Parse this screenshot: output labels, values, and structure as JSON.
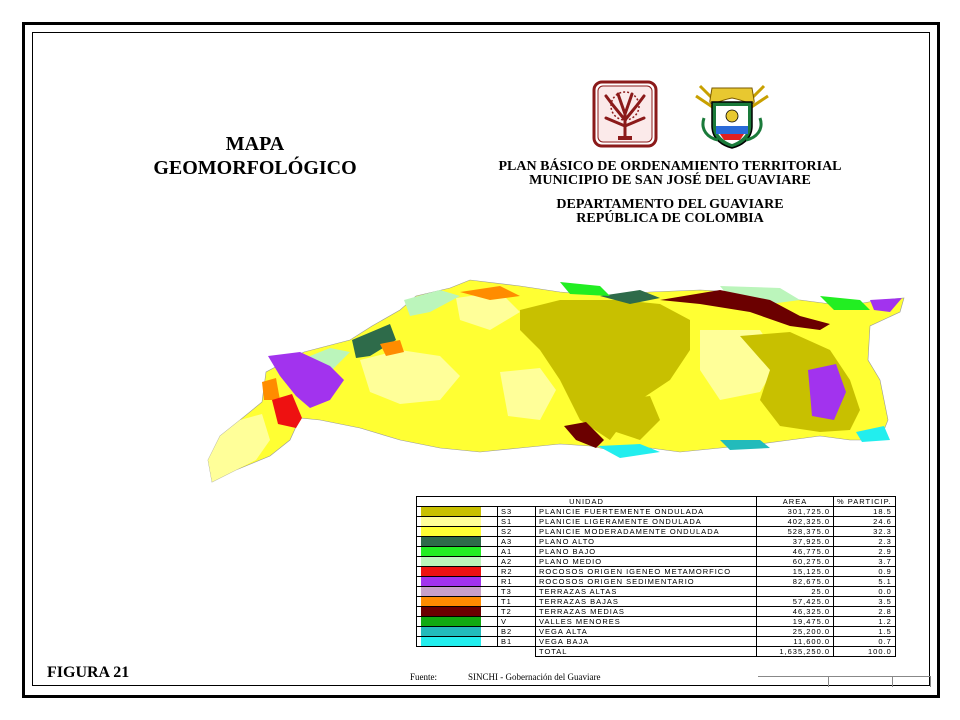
{
  "map_title": [
    "MAPA",
    "GEOMORFOLÓGICO"
  ],
  "plan_lines_1": [
    "PLAN BÁSICO DE ORDENAMIENTO TERRITORIAL",
    "MUNICIPIO DE SAN JOSÉ DEL GUAVIARE"
  ],
  "plan_lines_2": [
    "DEPARTAMENTO DEL GUAVIARE",
    "REPÚBLICA DE COLOMBIA"
  ],
  "legend": {
    "headers": {
      "unit": "UNIDAD",
      "area": "AREA",
      "pct": "% PARTICIP."
    },
    "rows": [
      {
        "code": "S3",
        "name": "PLANICIE FUERTEMENTE ONDULADA",
        "area": "301,725.0",
        "pct": "18.5",
        "color": "#c8c000"
      },
      {
        "code": "S1",
        "name": "PLANICIE LIGERAMENTE ONDULADA",
        "area": "402,325.0",
        "pct": "24.6",
        "color": "#ffff99"
      },
      {
        "code": "S2",
        "name": "PLANICIE MODERADAMENTE ONDULADA",
        "area": "528,375.0",
        "pct": "32.3",
        "color": "#ffff33"
      },
      {
        "code": "A3",
        "name": "PLANO ALTO",
        "area": "37,925.0",
        "pct": "2.3",
        "color": "#2e6b4a"
      },
      {
        "code": "A1",
        "name": "PLANO BAJO",
        "area": "46,775.0",
        "pct": "2.9",
        "color": "#22ee22"
      },
      {
        "code": "A2",
        "name": "PLANO MEDIO",
        "area": "60,275.0",
        "pct": "3.7",
        "color": "#bbf5bb"
      },
      {
        "code": "R2",
        "name": "ROCOSOS ORIGEN IGENEO METAMORFICO",
        "area": "15,125.0",
        "pct": "0.9",
        "color": "#ee1111"
      },
      {
        "code": "R1",
        "name": "ROCOSOS ORIGEN SEDIMENTARIO",
        "area": "82,675.0",
        "pct": "5.1",
        "color": "#a233ee"
      },
      {
        "code": "T3",
        "name": "TERRAZAS ALTAS",
        "area": "25.0",
        "pct": "0.0",
        "color": "#c8a0c8"
      },
      {
        "code": "T1",
        "name": "TERRAZAS BAJAS",
        "area": "57,425.0",
        "pct": "3.5",
        "color": "#ff8c00"
      },
      {
        "code": "T2",
        "name": "TERRAZAS MEDIAS",
        "area": "46,325.0",
        "pct": "2.8",
        "color": "#6b0000"
      },
      {
        "code": "V",
        "name": "VALLES MENORES",
        "area": "19,475.0",
        "pct": "1.2",
        "color": "#11aa11"
      },
      {
        "code": "B2",
        "name": "VEGA ALTA",
        "area": "25,200.0",
        "pct": "1.5",
        "color": "#22bbbb"
      },
      {
        "code": "B1",
        "name": "VEGA BAJA",
        "area": "11,600.0",
        "pct": "0.7",
        "color": "#22eeee"
      }
    ],
    "total": {
      "label": "TOTAL",
      "area": "1,635,250.0",
      "pct": "100.0"
    }
  },
  "figure_label": "FIGURA  21",
  "source": {
    "label": "Fuente:",
    "text": "SINCHI - Gobernación del Guaviare"
  }
}
